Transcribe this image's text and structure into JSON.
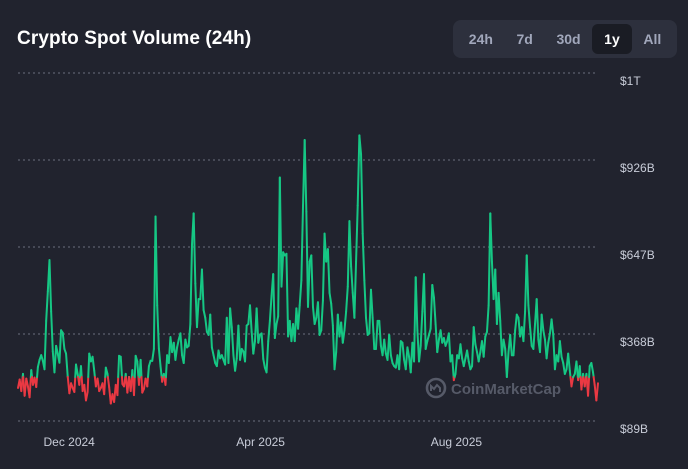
{
  "header": {
    "title": "Crypto Spot Volume (24h)"
  },
  "time_ranges": [
    {
      "label": "24h",
      "active": false
    },
    {
      "label": "7d",
      "active": false
    },
    {
      "label": "30d",
      "active": false
    },
    {
      "label": "1y",
      "active": true
    },
    {
      "label": "All",
      "active": false
    }
  ],
  "watermark": {
    "text": "CoinMarketCap",
    "icon": "coinmarketcap-logo-icon"
  },
  "colors": {
    "background": "#21232e",
    "up": "#16c784",
    "down": "#ea3943",
    "grid": "#6b6f7d",
    "label": "#c8ccd8"
  },
  "chart_data": {
    "type": "line",
    "title": "Crypto Spot Volume (24h)",
    "xlabel": "",
    "ylabel": "",
    "x_tick_labels": [
      "Dec 2024",
      "Apr 2025",
      "Aug 2025"
    ],
    "y_tick_labels": [
      "$1T",
      "$926B",
      "$647B",
      "$368B",
      "$89B"
    ],
    "y_tick_values": [
      1205,
      926,
      647,
      368,
      89
    ],
    "ylim": [
      89,
      1205
    ],
    "baseline": 230,
    "grid": true,
    "x_start": "2024-11-15",
    "x_end": "2025-11-14",
    "series": [
      {
        "values": [
          195,
          222,
          185,
          240,
          170,
          225,
          200,
          165,
          252,
          205,
          228,
          198,
          262,
          285,
          300,
          282,
          255,
          410,
          505,
          605,
          440,
          312,
          245,
          330,
          305,
          276,
          380,
          372,
          320,
          305,
          232,
          178,
          210,
          195,
          182,
          270,
          240,
          205,
          265,
          185,
          205,
          155,
          182,
          305,
          280,
          295,
          250,
          200,
          225,
          185,
          195,
          210,
          175,
          260,
          240,
          198,
          145,
          175,
          150,
          205,
          172,
          298,
          295,
          208,
          200,
          240,
          180,
          230,
          185,
          252,
          172,
          298,
          280,
          205,
          285,
          180,
          192,
          225,
          200,
          265,
          282,
          282,
          320,
          745,
          460,
          322,
          265,
          215,
          240,
          205,
          300,
          275,
          358,
          310,
          340,
          285,
          325,
          350,
          370,
          300,
          275,
          350,
          325,
          330,
          400,
          655,
          755,
          530,
          390,
          480,
          480,
          575,
          445,
          420,
          375,
          365,
          430,
          325,
          300,
          275,
          265,
          315,
          290,
          300,
          285,
          270,
          420,
          275,
          450,
          390,
          300,
          250,
          290,
          395,
          285,
          320,
          312,
          280,
          395,
          400,
          460,
          375,
          305,
          345,
          450,
          340,
          365,
          370,
          288,
          260,
          245,
          345,
          410,
          490,
          560,
          355,
          400,
          425,
          870,
          520,
          630,
          620,
          625,
          360,
          410,
          345,
          400,
          345,
          450,
          385,
          460,
          540,
          780,
          990,
          760,
          455,
          600,
          620,
          455,
          400,
          420,
          470,
          365,
          380,
          475,
          690,
          600,
          640,
          500,
          465,
          395,
          255,
          310,
          430,
          360,
          405,
          340,
          380,
          440,
          520,
          730,
          585,
          500,
          420,
          600,
          780,
          1005,
          945,
          690,
          540,
          420,
          365,
          370,
          510,
          420,
          320,
          320,
          410,
          410,
          330,
          300,
          350,
          305,
          285,
          365,
          300,
          275,
          265,
          260,
          300,
          255,
          345,
          340,
          285,
          255,
          325,
          295,
          245,
          340,
          280,
          550,
          380,
          280,
          330,
          440,
          560,
          320,
          345,
          365,
          385,
          525,
          485,
          400,
          310,
          350,
          380,
          340,
          355,
          330,
          345,
          370,
          280,
          300,
          220,
          240,
          300,
          290,
          335,
          290,
          265,
          290,
          315,
          280,
          255,
          265,
          390,
          335,
          310,
          280,
          310,
          345,
          295,
          360,
          375,
          460,
          755,
          600,
          480,
          575,
          400,
          500,
          410,
          300,
          350,
          320,
          230,
          310,
          365,
          300,
          300,
          380,
          430,
          420,
          360,
          390,
          345,
          440,
          620,
          460,
          390,
          330,
          320,
          400,
          480,
          350,
          310,
          430,
          380,
          350,
          290,
          340,
          370,
          415,
          365,
          255,
          300,
          280,
          345,
          295,
          275,
          240,
          255,
          305,
          250,
          200,
          230,
          240,
          280,
          220,
          265,
          190,
          240,
          200,
          240,
          170,
          265,
          275,
          245,
          205,
          155,
          210
        ]
      }
    ]
  }
}
